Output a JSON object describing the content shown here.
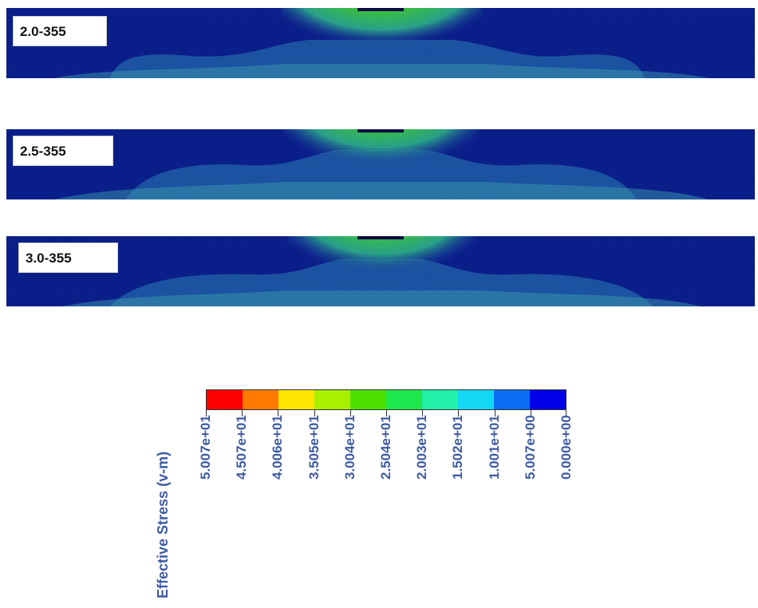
{
  "panels": [
    {
      "label": "2.0-355"
    },
    {
      "label": "2.5-355"
    },
    {
      "label": "3.0-355"
    }
  ],
  "legend": {
    "title": "Effective Stress (v-m)",
    "colors": [
      "#ff0000",
      "#ff7a00",
      "#ffe600",
      "#a8f000",
      "#4de100",
      "#1ee84d",
      "#20f0a8",
      "#12d8f5",
      "#0a6ef5",
      "#0000e6"
    ],
    "labels": [
      "5.007e+01",
      "4.507e+01",
      "4.006e+01",
      "3.505e+01",
      "3.004e+01",
      "2.504e+01",
      "2.003e+01",
      "1.502e+01",
      "1.001e+01",
      "5.007e+00",
      "0.000e+00"
    ]
  }
}
